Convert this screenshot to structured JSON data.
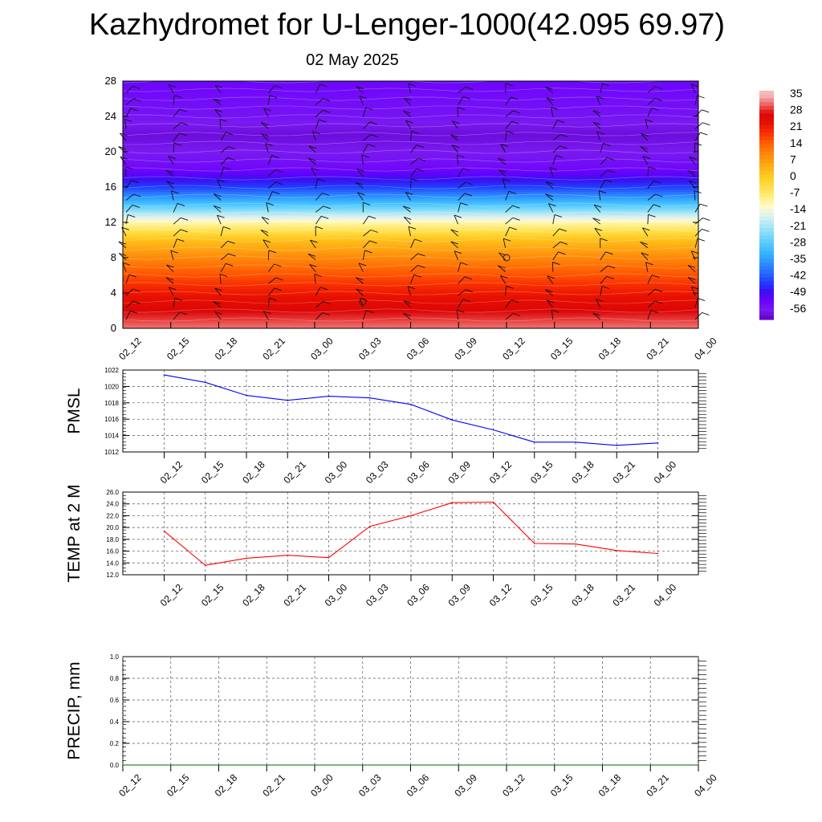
{
  "header": {
    "title": "Kazhydromet for U-Lenger-1000(42.095 69.97)",
    "date": "02 May 2025"
  },
  "time_labels": [
    "02_12",
    "02_15",
    "02_18",
    "02_21",
    "03_00",
    "03_03",
    "03_06",
    "03_09",
    "03_12",
    "03_15",
    "03_18",
    "03_21",
    "04_00"
  ],
  "colors": {
    "pmsl_line": "#0000ff",
    "temp_line": "#ff0000",
    "precip_line": "#006400",
    "grid": "#555555"
  },
  "chart_data": [
    {
      "type": "heatmap",
      "name": "upper-air-cross-section",
      "x_ticks": [
        "02_12",
        "02_15",
        "02_18",
        "02_21",
        "03_00",
        "03_03",
        "03_06",
        "03_09",
        "03_12",
        "03_15",
        "03_18",
        "03_21",
        "04_00"
      ],
      "y_ticks": [
        "0",
        "4",
        "8",
        "12",
        "16",
        "20",
        "24",
        "28"
      ],
      "ylim": [
        0,
        28
      ],
      "colorbar": {
        "labels": [
          "35",
          "28",
          "21",
          "14",
          "7",
          "0",
          "-7",
          "-14",
          "-21",
          "-28",
          "-35",
          "-42",
          "-49",
          "-56"
        ],
        "range": [
          -60,
          38
        ]
      },
      "temperature_profile": {
        "levels": [
          0,
          2,
          4,
          6,
          8,
          10,
          12,
          14,
          16,
          18,
          20,
          22,
          24,
          26,
          28
        ],
        "values": [
          33,
          28,
          23,
          17,
          11,
          3,
          -10,
          -28,
          -44,
          -53,
          -56,
          -58,
          -55,
          -54,
          -53
        ]
      },
      "markers": [
        {
          "time": "03_03",
          "level": 3
        },
        {
          "time": "03_12",
          "level": 8
        }
      ]
    },
    {
      "type": "line",
      "ylabel": "PMSL",
      "y_ticks": [
        "1022",
        "1020",
        "1018",
        "1016",
        "1014",
        "1012"
      ],
      "ylim": [
        1012,
        1022
      ],
      "x": [
        "02_12",
        "02_15",
        "02_18",
        "02_21",
        "03_00",
        "03_03",
        "03_06",
        "03_09",
        "03_12",
        "03_15",
        "03_18",
        "03_21",
        "04_00"
      ],
      "values": [
        1021.4,
        1020.5,
        1018.9,
        1018.3,
        1018.8,
        1018.6,
        1017.8,
        1015.9,
        1014.7,
        1013.2,
        1013.2,
        1012.8,
        1013.1
      ]
    },
    {
      "type": "line",
      "ylabel": "TEMP at 2 M",
      "y_ticks": [
        "26.0",
        "24.0",
        "22.0",
        "20.0",
        "18.0",
        "16.0",
        "14.0",
        "12.0"
      ],
      "ylim": [
        12,
        26
      ],
      "x": [
        "02_12",
        "02_15",
        "02_18",
        "02_21",
        "03_00",
        "03_03",
        "03_06",
        "03_09",
        "03_12",
        "03_15",
        "03_18",
        "03_21",
        "04_00"
      ],
      "values": [
        19.4,
        13.6,
        14.8,
        15.3,
        14.9,
        20.2,
        22.0,
        24.2,
        24.3,
        17.3,
        17.2,
        16.1,
        15.6
      ]
    },
    {
      "type": "line",
      "ylabel": "PRECIP, mm",
      "y_ticks": [
        "1.0",
        "0.8",
        "0.6",
        "0.4",
        "0.2",
        "0.0"
      ],
      "ylim": [
        0,
        1
      ],
      "x": [
        "02_12",
        "02_15",
        "02_18",
        "02_21",
        "03_00",
        "03_03",
        "03_06",
        "03_09",
        "03_12",
        "03_15",
        "03_18",
        "03_21",
        "04_00"
      ],
      "values": [
        0,
        0,
        0,
        0,
        0,
        0,
        0,
        0,
        0,
        0,
        0,
        0,
        0
      ]
    }
  ]
}
